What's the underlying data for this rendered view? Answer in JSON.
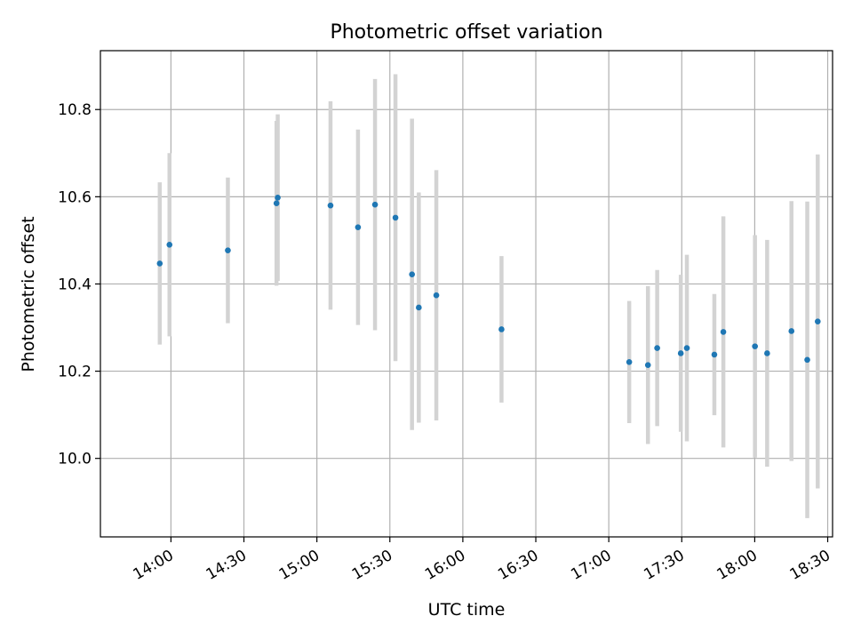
{
  "chart_data": {
    "type": "scatter",
    "title": "Photometric offset variation",
    "xlabel": "UTC time",
    "ylabel": "Photometric offset",
    "grid": true,
    "xlim": [
      811,
      1112
    ],
    "ylim": [
      9.82,
      10.935
    ],
    "x_ticks": [
      {
        "value": 840,
        "label": "14:00"
      },
      {
        "value": 870,
        "label": "14:30"
      },
      {
        "value": 900,
        "label": "15:00"
      },
      {
        "value": 930,
        "label": "15:30"
      },
      {
        "value": 960,
        "label": "16:00"
      },
      {
        "value": 990,
        "label": "16:30"
      },
      {
        "value": 1020,
        "label": "17:00"
      },
      {
        "value": 1050,
        "label": "17:30"
      },
      {
        "value": 1080,
        "label": "18:00"
      },
      {
        "value": 1110,
        "label": "18:30"
      }
    ],
    "y_ticks": [
      {
        "value": 10.0,
        "label": "10.0"
      },
      {
        "value": 10.2,
        "label": "10.2"
      },
      {
        "value": 10.4,
        "label": "10.4"
      },
      {
        "value": 10.6,
        "label": "10.6"
      },
      {
        "value": 10.8,
        "label": "10.8"
      }
    ],
    "point_color": "#1f77b4",
    "errorbar_color": "#d3d3d3",
    "points": [
      {
        "x": 835.4,
        "y": 10.447,
        "err": 0.186
      },
      {
        "x": 839.4,
        "y": 10.49,
        "err": 0.21
      },
      {
        "x": 863.4,
        "y": 10.477,
        "err": 0.167
      },
      {
        "x": 883.4,
        "y": 10.585,
        "err": 0.189
      },
      {
        "x": 883.9,
        "y": 10.598,
        "err": 0.191
      },
      {
        "x": 905.6,
        "y": 10.58,
        "err": 0.239
      },
      {
        "x": 916.9,
        "y": 10.53,
        "err": 0.224
      },
      {
        "x": 923.9,
        "y": 10.582,
        "err": 0.288
      },
      {
        "x": 932.3,
        "y": 10.552,
        "err": 0.329
      },
      {
        "x": 939.1,
        "y": 10.422,
        "err": 0.357
      },
      {
        "x": 941.9,
        "y": 10.346,
        "err": 0.264
      },
      {
        "x": 949.1,
        "y": 10.374,
        "err": 0.287
      },
      {
        "x": 975.9,
        "y": 10.296,
        "err": 0.168
      },
      {
        "x": 1028.4,
        "y": 10.221,
        "err": 0.14
      },
      {
        "x": 1036.1,
        "y": 10.214,
        "err": 0.181
      },
      {
        "x": 1039.9,
        "y": 10.253,
        "err": 0.179
      },
      {
        "x": 1049.6,
        "y": 10.241,
        "err": 0.18
      },
      {
        "x": 1052.1,
        "y": 10.253,
        "err": 0.214
      },
      {
        "x": 1063.4,
        "y": 10.238,
        "err": 0.139
      },
      {
        "x": 1067.1,
        "y": 10.29,
        "err": 0.265
      },
      {
        "x": 1080.1,
        "y": 10.257,
        "err": 0.255
      },
      {
        "x": 1085.1,
        "y": 10.241,
        "err": 0.26
      },
      {
        "x": 1095.1,
        "y": 10.292,
        "err": 0.298
      },
      {
        "x": 1101.6,
        "y": 10.226,
        "err": 0.363
      },
      {
        "x": 1105.9,
        "y": 10.314,
        "err": 0.383
      }
    ]
  }
}
